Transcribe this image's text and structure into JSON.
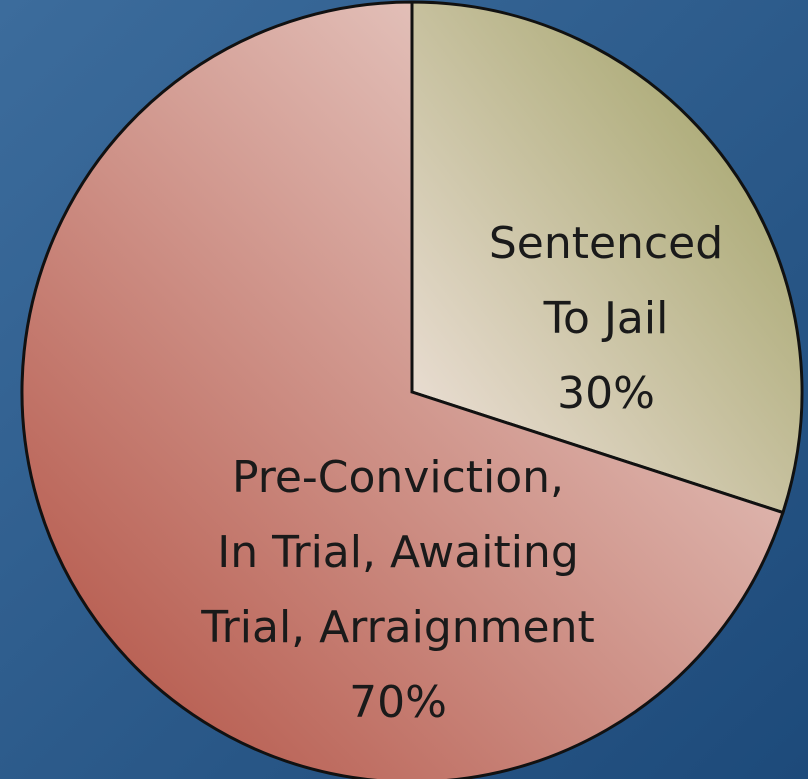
{
  "chart_data": {
    "type": "pie",
    "categories": [
      "Sentenced\nTo Jail",
      "Pre-Conviction,\nIn Trial, Awaiting\nTrial, Arraignment"
    ],
    "values": [
      30,
      70
    ],
    "value_labels": [
      "30%",
      "70%"
    ],
    "colors": [
      "#9a9c5c",
      "#b04c3e"
    ]
  }
}
